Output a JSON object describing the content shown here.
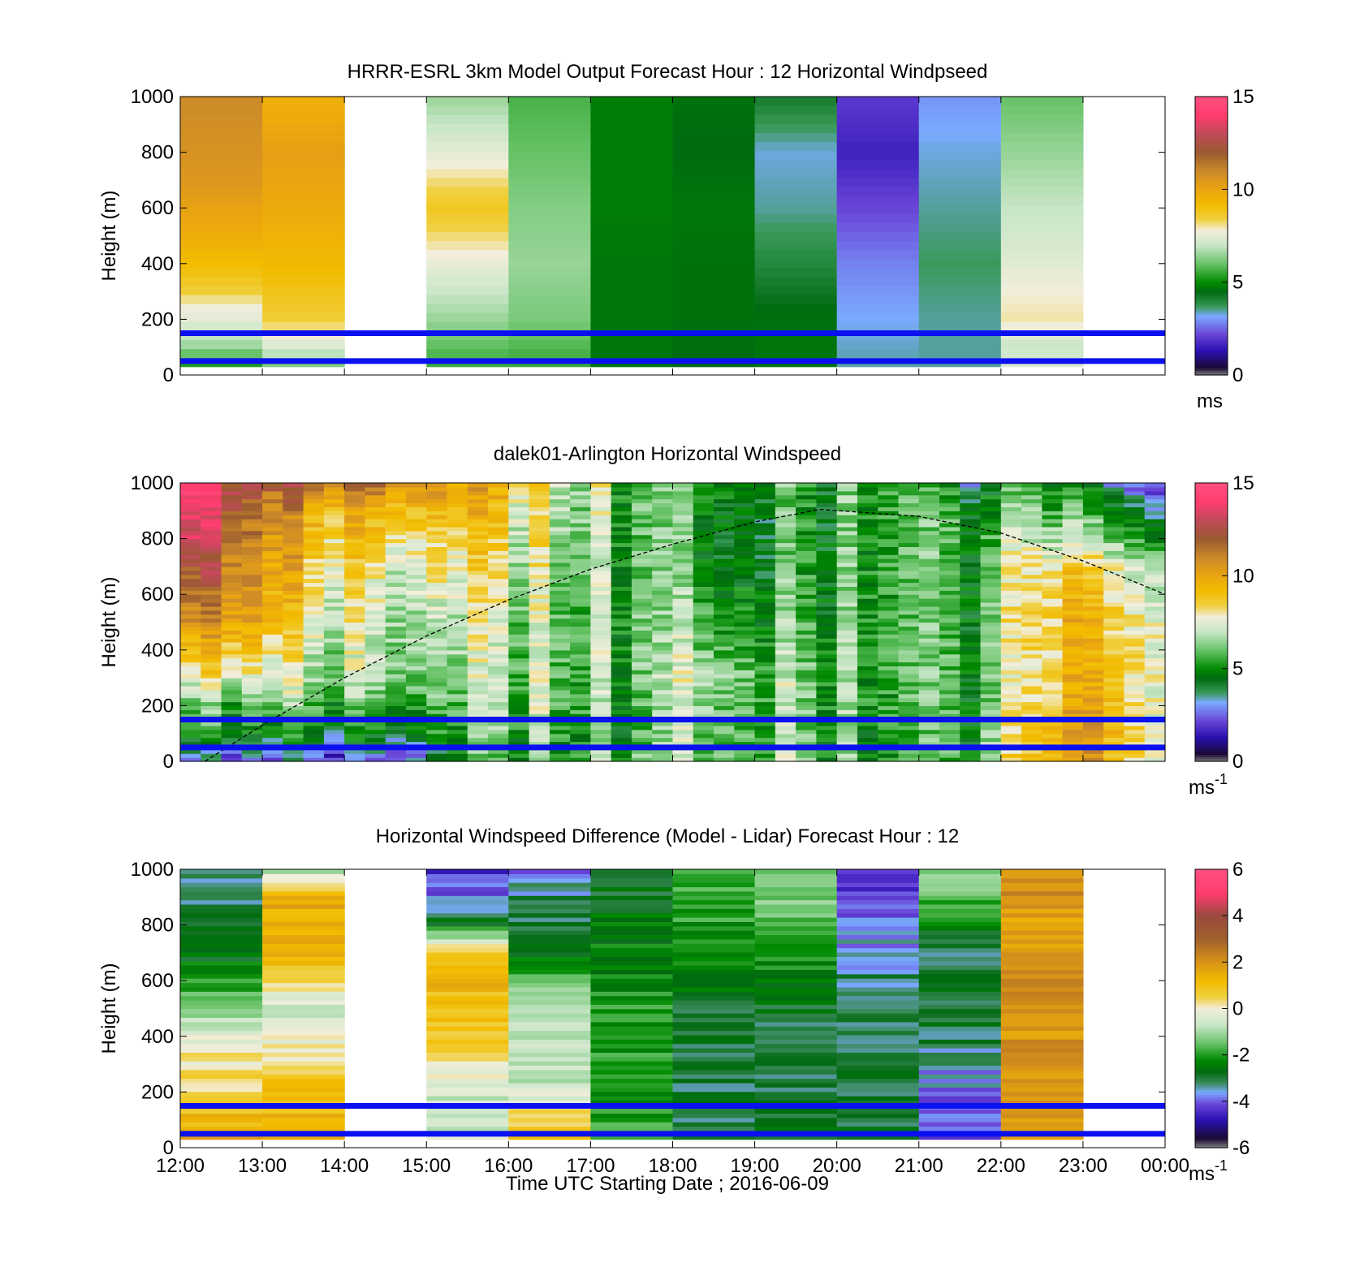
{
  "figure": {
    "xlabel": "Time UTC  Starting Date ; 2016-06-09",
    "x_tick_labels": [
      "12:00",
      "13:00",
      "14:00",
      "15:00",
      "16:00",
      "17:00",
      "18:00",
      "19:00",
      "20:00",
      "21:00",
      "22:00",
      "23:00",
      "00:00"
    ],
    "y_tick_labels": [
      "0",
      "200",
      "400",
      "600",
      "800",
      "1000"
    ],
    "ylabel": "Height (m)"
  },
  "chart_data": [
    {
      "type": "heatmap",
      "title": "HRRR-ESRL 3km Model Output   Forecast Hour : 12 Horizontal Windpseed",
      "ylabel": "Height (m)",
      "xlim_hours": [
        12,
        24
      ],
      "ylim": [
        0,
        1000
      ],
      "colorbar": {
        "min": 0,
        "max": 15,
        "ticks": [
          "0",
          "5",
          "10",
          "15"
        ],
        "unit": "ms"
      },
      "reference_lines_m": [
        50,
        150
      ],
      "hourly_speed_ms": [
        {
          "hour": "12:00",
          "heights_m": [
            30,
            100,
            200,
            250,
            300,
            400,
            500,
            700,
            1000
          ],
          "values": [
            5,
            6.5,
            7.5,
            7.8,
            8.5,
            9.2,
            9.7,
            10.5,
            11
          ]
        },
        {
          "hour": "13:00",
          "heights_m": [
            30,
            100,
            200,
            400,
            600,
            800,
            1000
          ],
          "values": [
            6,
            7.3,
            8.5,
            9.3,
            9.8,
            10.2,
            9.6
          ]
        },
        {
          "hour": "14:00",
          "heights_m": [],
          "values": []
        },
        {
          "hour": "15:00",
          "heights_m": [
            30,
            200,
            400,
            600,
            800,
            1000
          ],
          "values": [
            5.5,
            6.5,
            7.6,
            8.8,
            7.5,
            6.5
          ]
        },
        {
          "hour": "16:00",
          "heights_m": [
            30,
            200,
            400,
            600,
            800,
            1000
          ],
          "values": [
            5.5,
            6.2,
            6.5,
            6.3,
            6.0,
            5.7
          ]
        },
        {
          "hour": "17:00",
          "heights_m": [
            30,
            200,
            400,
            600,
            800,
            1000
          ],
          "values": [
            4.7,
            4.7,
            4.7,
            4.8,
            4.8,
            4.8
          ]
        },
        {
          "hour": "18:00",
          "heights_m": [
            30,
            200,
            400,
            600,
            800,
            1000
          ],
          "values": [
            4.5,
            4.6,
            4.6,
            4.7,
            4.5,
            4.6
          ]
        },
        {
          "hour": "19:00",
          "heights_m": [
            30,
            200,
            400,
            600,
            800,
            1000
          ],
          "values": [
            4.7,
            4.6,
            4.0,
            3.5,
            3.3,
            4.2
          ]
        },
        {
          "hour": "20:00",
          "heights_m": [
            30,
            200,
            400,
            600,
            800,
            1000
          ],
          "values": [
            3.5,
            3.2,
            2.8,
            2.2,
            1.6,
            2.0
          ]
        },
        {
          "hour": "21:00",
          "heights_m": [
            30,
            200,
            400,
            600,
            800,
            1000
          ],
          "values": [
            3.5,
            3.5,
            3.7,
            3.5,
            3.3,
            3.0
          ]
        },
        {
          "hour": "22:00",
          "heights_m": [
            30,
            100,
            200,
            300,
            450,
            600,
            800,
            1000
          ],
          "values": [
            7.5,
            7.0,
            8.0,
            7.8,
            7.3,
            7.0,
            6.5,
            6.0
          ]
        },
        {
          "hour": "23:00",
          "heights_m": [],
          "values": []
        }
      ]
    },
    {
      "type": "heatmap",
      "title": "dalek01-Arlington  Horizontal Windspeed",
      "ylabel": "Height (m)",
      "xlim_hours": [
        12,
        24
      ],
      "ylim": [
        0,
        1000
      ],
      "colorbar": {
        "min": 0,
        "max": 15,
        "ticks": [
          "0",
          "5",
          "10",
          "15"
        ],
        "unit": "ms",
        "unit_exponent": "-1"
      },
      "reference_lines_m": [
        50,
        150
      ],
      "boundary_layer_curve": {
        "hours": [
          12.3,
          13,
          14,
          15,
          16,
          17,
          18,
          19,
          19.8,
          21,
          22,
          23,
          24
        ],
        "heights_m": [
          0,
          130,
          300,
          450,
          580,
          690,
          780,
          860,
          905,
          880,
          820,
          720,
          600
        ]
      },
      "anchor_profiles_ms": [
        {
          "hour": 12.0,
          "heights_m": [
            20,
            100,
            200,
            300,
            500,
            700,
            900,
            1000
          ],
          "values": [
            2.5,
            4.5,
            5.5,
            7,
            10,
            12,
            14,
            14
          ]
        },
        {
          "hour": 12.8,
          "heights_m": [
            20,
            100,
            200,
            300,
            500,
            700,
            900,
            1000
          ],
          "values": [
            3,
            5,
            6,
            8,
            10.5,
            11.5,
            12,
            13
          ]
        },
        {
          "hour": 13.5,
          "heights_m": [
            20,
            100,
            200,
            300,
            500,
            700,
            900,
            1000
          ],
          "values": [
            3,
            5,
            6,
            7,
            8,
            9,
            10,
            12
          ]
        },
        {
          "hour": 14.5,
          "heights_m": [
            20,
            100,
            200,
            300,
            500,
            700,
            900,
            1000
          ],
          "values": [
            3,
            5,
            6,
            7,
            7.5,
            8,
            10,
            12
          ]
        },
        {
          "hour": 15.5,
          "heights_m": [
            20,
            100,
            200,
            300,
            500,
            700,
            900,
            1000
          ],
          "values": [
            5,
            5.5,
            6,
            6.5,
            7,
            8,
            9,
            10
          ]
        },
        {
          "hour": 16.5,
          "heights_m": [
            20,
            100,
            200,
            300,
            500,
            700,
            900,
            1000
          ],
          "values": [
            6,
            6,
            6.5,
            6.5,
            6.5,
            7,
            7.5,
            8
          ]
        },
        {
          "hour": 17.5,
          "heights_m": [
            20,
            100,
            200,
            300,
            500,
            700,
            900,
            1000
          ],
          "values": [
            6,
            5.5,
            5.5,
            6,
            6,
            6,
            6,
            6
          ]
        },
        {
          "hour": 18.5,
          "heights_m": [
            20,
            100,
            200,
            300,
            500,
            700,
            900,
            1000
          ],
          "values": [
            6.5,
            6.5,
            6.8,
            7,
            6,
            5,
            5,
            5.5
          ]
        },
        {
          "hour": 19.5,
          "heights_m": [
            20,
            100,
            200,
            300,
            500,
            700,
            900,
            1000
          ],
          "values": [
            6.5,
            6,
            6,
            6,
            5.5,
            5,
            5,
            5
          ]
        },
        {
          "hour": 20.5,
          "heights_m": [
            20,
            100,
            200,
            300,
            500,
            700,
            900,
            1000
          ],
          "values": [
            5,
            5,
            5.5,
            5.5,
            5.5,
            5.5,
            5.5,
            5.5
          ]
        },
        {
          "hour": 21.5,
          "heights_m": [
            20,
            100,
            200,
            300,
            500,
            700,
            900,
            1000
          ],
          "values": [
            5,
            5,
            5,
            5,
            5,
            5,
            5,
            4
          ]
        },
        {
          "hour": 22.5,
          "heights_m": [
            20,
            100,
            200,
            300,
            500,
            700,
            900,
            1000
          ],
          "values": [
            9,
            9,
            8.5,
            8,
            8.5,
            8,
            6,
            5
          ]
        },
        {
          "hour": 23.0,
          "heights_m": [
            20,
            100,
            200,
            300,
            500,
            700,
            900,
            1000
          ],
          "values": [
            10,
            10,
            9.5,
            9,
            9,
            8,
            5,
            4
          ]
        },
        {
          "hour": 24.0,
          "heights_m": [
            20,
            100,
            200,
            300,
            500,
            700,
            900,
            1000
          ],
          "values": [
            8,
            8,
            8,
            8,
            8,
            7,
            4,
            2
          ]
        }
      ]
    },
    {
      "type": "heatmap",
      "title": "Horizontal Windspeed Difference (Model - Lidar) Forecast Hour : 12",
      "ylabel": "Height (m)",
      "xlabel": "Time UTC  Starting Date ; 2016-06-09",
      "xlim_hours": [
        12,
        24
      ],
      "ylim": [
        0,
        1000
      ],
      "colorbar": {
        "min": -6,
        "max": 6,
        "ticks": [
          "-6",
          "-4",
          "-2",
          "0",
          "2",
          "4",
          "6"
        ],
        "unit": "ms",
        "unit_exponent": "-1"
      },
      "reference_lines_m": [
        50,
        150
      ],
      "hourly_difference_ms": [
        {
          "hour": "12:00",
          "heights_m": [
            30,
            100,
            200,
            300,
            400,
            500,
            600,
            700,
            800,
            900,
            1000
          ],
          "values": [
            1.5,
            1.2,
            0.5,
            0.2,
            -0.3,
            -1.0,
            -2.0,
            -2.8,
            -3.0,
            -3.2,
            -3.0
          ]
        },
        {
          "hour": "13:00",
          "heights_m": [
            30,
            100,
            200,
            300,
            400,
            500,
            600,
            700,
            800,
            900,
            1000
          ],
          "values": [
            1.5,
            1.3,
            1.0,
            0.5,
            -0.3,
            -0.5,
            0.5,
            1.2,
            1.4,
            1.5,
            -1.0
          ]
        },
        {
          "hour": "14:00",
          "heights_m": [],
          "values": []
        },
        {
          "hour": "15:00",
          "heights_m": [
            30,
            100,
            200,
            300,
            400,
            500,
            600,
            700,
            800,
            900,
            1000
          ],
          "values": [
            -0.5,
            -0.8,
            -0.5,
            0.3,
            0.8,
            1.0,
            1.2,
            1.0,
            -2.5,
            -3.8,
            -4.5
          ]
        },
        {
          "hour": "16:00",
          "heights_m": [
            30,
            100,
            200,
            300,
            400,
            500,
            600,
            700,
            800,
            900,
            1000
          ],
          "values": [
            1.5,
            0.5,
            -0.5,
            -0.8,
            -0.8,
            -1.0,
            -1.5,
            -2.5,
            -3.0,
            -3.2,
            -4.0
          ]
        },
        {
          "hour": "17:00",
          "heights_m": [
            30,
            100,
            200,
            300,
            400,
            500,
            600,
            700,
            800,
            900,
            1000
          ],
          "values": [
            -1.8,
            -2.0,
            -2.2,
            -2.0,
            -2.0,
            -2.0,
            -2.2,
            -2.3,
            -2.5,
            -2.8,
            -3.0
          ]
        },
        {
          "hour": "18:00",
          "heights_m": [
            30,
            100,
            200,
            300,
            400,
            500,
            600,
            700,
            800,
            900,
            1000
          ],
          "values": [
            -3.0,
            -3.0,
            -3.0,
            -3.0,
            -3.0,
            -2.8,
            -2.5,
            -2.3,
            -2.0,
            -1.8,
            -1.8
          ]
        },
        {
          "hour": "19:00",
          "heights_m": [
            30,
            100,
            200,
            300,
            400,
            500,
            600,
            700,
            800,
            900,
            1000
          ],
          "values": [
            -2.5,
            -2.8,
            -3.0,
            -3.0,
            -3.0,
            -2.8,
            -2.5,
            -2.0,
            -1.5,
            -1.3,
            -1.2
          ]
        },
        {
          "hour": "20:00",
          "heights_m": [
            30,
            100,
            200,
            300,
            400,
            500,
            600,
            700,
            800,
            900,
            1000
          ],
          "values": [
            -2.8,
            -3.0,
            -3.0,
            -3.0,
            -3.0,
            -3.0,
            -3.2,
            -3.5,
            -3.8,
            -4.5,
            -4.0
          ]
        },
        {
          "hour": "21:00",
          "heights_m": [
            30,
            100,
            200,
            300,
            400,
            500,
            600,
            700,
            800,
            900,
            1000
          ],
          "values": [
            -4.5,
            -4.0,
            -3.8,
            -3.5,
            -3.0,
            -3.0,
            -3.0,
            -3.0,
            -2.5,
            -1.5,
            -1.0
          ]
        },
        {
          "hour": "22:00",
          "heights_m": [
            30,
            100,
            200,
            300,
            400,
            500,
            600,
            700,
            800,
            900,
            1000
          ],
          "values": [
            1.5,
            1.8,
            2.0,
            2.0,
            2.0,
            2.0,
            2.0,
            2.0,
            1.8,
            2.0,
            2.2
          ]
        },
        {
          "hour": "23:00",
          "heights_m": [],
          "values": []
        }
      ]
    }
  ]
}
